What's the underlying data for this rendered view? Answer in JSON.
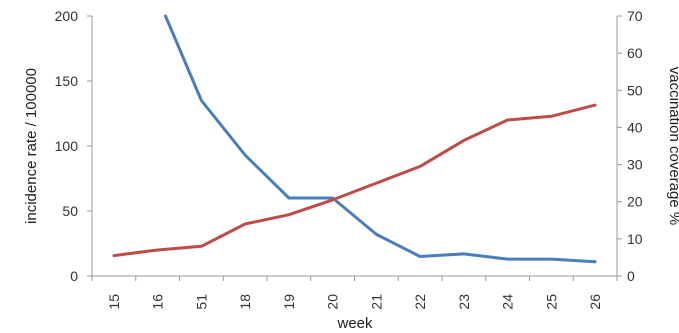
{
  "chart_data": {
    "type": "line",
    "title": "",
    "xlabel": "week",
    "ylabel_left": "incidence rate / 100000",
    "ylabel_right": "vaccination coverage %",
    "categories": [
      "15",
      "16",
      "51",
      "18",
      "19",
      "20",
      "21",
      "22",
      "23",
      "24",
      "25",
      "26"
    ],
    "ylim_left": [
      0,
      200
    ],
    "yticks_left": [
      0,
      50,
      100,
      150,
      200
    ],
    "ylim_right": [
      0,
      70
    ],
    "yticks_right": [
      0,
      10,
      20,
      30,
      40,
      50,
      60,
      70
    ],
    "grid": false,
    "legend": "none",
    "series": [
      {
        "axis": "left",
        "color": "#4a7ebb",
        "values": [
          null,
          200,
          135,
          93,
          60,
          60,
          32,
          15,
          17,
          13,
          13,
          11
        ],
        "note_first_point_clipped": "line enters from above at top of plot between 16 and 51"
      },
      {
        "axis": "right",
        "color": "#be4b48",
        "values": [
          5.5,
          7,
          8,
          14,
          16.5,
          20.5,
          25,
          29.5,
          36.5,
          42,
          43,
          46
        ]
      }
    ]
  }
}
